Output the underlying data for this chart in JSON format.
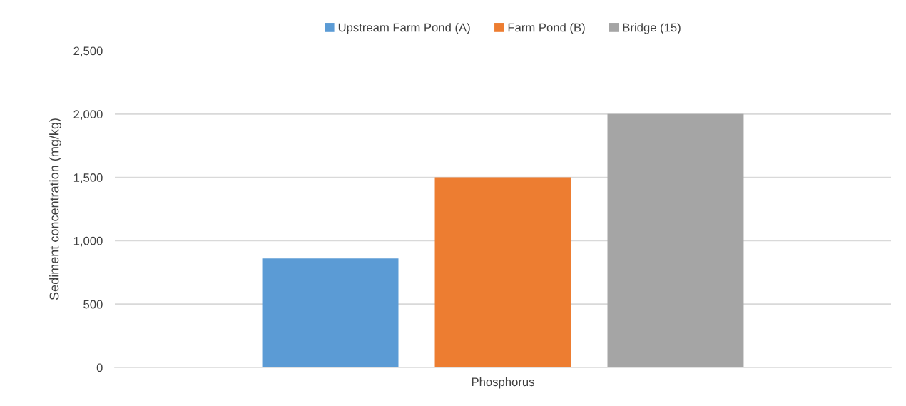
{
  "chart_data": {
    "type": "bar",
    "categories": [
      "Phosphorus"
    ],
    "series": [
      {
        "name": "Upstream Farm Pond (A)",
        "color": "#5b9bd5",
        "values": [
          860
        ]
      },
      {
        "name": "Farm Pond (B)",
        "color": "#ed7d31",
        "values": [
          1500
        ]
      },
      {
        "name": "Bridge (15)",
        "color": "#a5a5a5",
        "values": [
          2000
        ]
      }
    ],
    "ylabel": "Sediment concentration (mg/kg)",
    "ylim": [
      0,
      2500
    ],
    "yticks": [
      {
        "value": 0,
        "label": "0"
      },
      {
        "value": 500,
        "label": "500"
      },
      {
        "value": 1000,
        "label": "1,000"
      },
      {
        "value": 1500,
        "label": "1,500"
      },
      {
        "value": 2000,
        "label": "2,000"
      },
      {
        "value": 2500,
        "label": "2,500"
      }
    ],
    "grid": "y",
    "legend": "top"
  }
}
